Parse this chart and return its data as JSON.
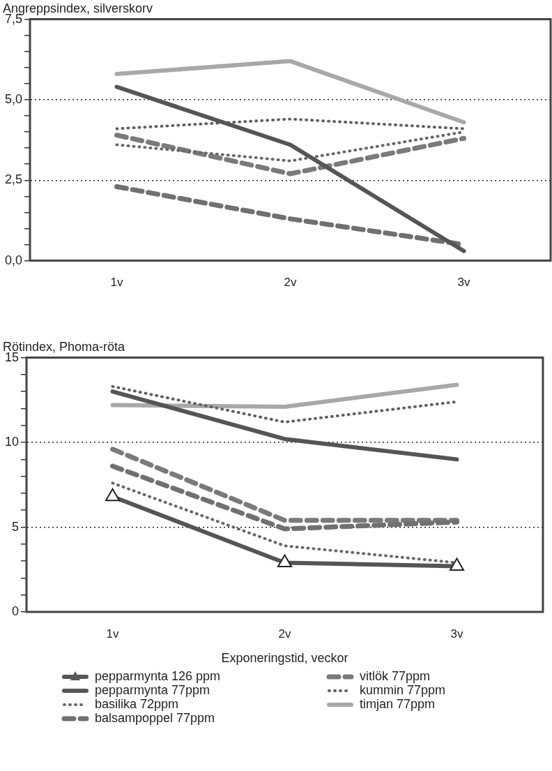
{
  "chart_data": [
    {
      "type": "line",
      "title": "Angreppsindex, silverskorv",
      "categories": [
        "1v",
        "2v",
        "3v"
      ],
      "ylim": [
        0,
        7.5
      ],
      "yticks": [
        {
          "value": 0,
          "label": "0,0"
        },
        {
          "value": 0.5,
          "label": null
        },
        {
          "value": 1,
          "label": null
        },
        {
          "value": 1.5,
          "label": null
        },
        {
          "value": 2,
          "label": null
        },
        {
          "value": 2.5,
          "label": "2,5"
        },
        {
          "value": 3,
          "label": null
        },
        {
          "value": 3.5,
          "label": null
        },
        {
          "value": 4,
          "label": null
        },
        {
          "value": 4.5,
          "label": null
        },
        {
          "value": 5,
          "label": "5,0"
        },
        {
          "value": 5.5,
          "label": null
        },
        {
          "value": 6,
          "label": null
        },
        {
          "value": 6.5,
          "label": null
        },
        {
          "value": 7,
          "label": null
        },
        {
          "value": 7.5,
          "label": "7,5"
        }
      ],
      "grid": "y",
      "marker": "none",
      "series": [
        {
          "color": "#555555",
          "line_style": "solid",
          "values": [
            5.4,
            3.6,
            0.3
          ]
        },
        {
          "color": "#666666",
          "line_style": "dotted",
          "values": [
            3.6,
            3.1,
            4.0
          ]
        },
        {
          "color": "#707070",
          "line_style": "dashed",
          "values": [
            2.3,
            1.3,
            0.5
          ]
        },
        {
          "color": "#7a7a7a",
          "line_style": "dashed",
          "values": [
            3.9,
            2.7,
            3.8
          ]
        },
        {
          "color": "#606060",
          "line_style": "dotted",
          "values": [
            4.1,
            4.4,
            4.1
          ]
        },
        {
          "color": "#a8a8a8",
          "line_style": "solid",
          "values": [
            5.8,
            6.2,
            4.3
          ]
        }
      ]
    },
    {
      "type": "line",
      "title": "Rötindex, Phoma-röta",
      "xlabel": "Exponeringstid, veckor",
      "categories": [
        "1v",
        "2v",
        "3v"
      ],
      "ylim": [
        0,
        15
      ],
      "yticks": [
        0,
        {
          "value": 1,
          "label": null
        },
        {
          "value": 2,
          "label": null
        },
        {
          "value": 3,
          "label": null
        },
        {
          "value": 4,
          "label": null
        },
        5,
        {
          "value": 6,
          "label": null
        },
        {
          "value": 7,
          "label": null
        },
        {
          "value": 8,
          "label": null
        },
        {
          "value": 9,
          "label": null
        },
        10,
        {
          "value": 11,
          "label": null
        },
        {
          "value": 12,
          "label": null
        },
        {
          "value": 13,
          "label": null
        },
        {
          "value": 14,
          "label": null
        },
        15
      ],
      "grid": "y",
      "legend": "bottom",
      "series": [
        {
          "name": "pepparmynta 126 ppm",
          "color": "#555555",
          "line_style": "solid",
          "marker": "triangle",
          "values": [
            6.8,
            2.9,
            2.7
          ]
        },
        {
          "name": "pepparmynta 77ppm",
          "color": "#555555",
          "line_style": "solid",
          "marker": "none",
          "values": [
            13.0,
            10.2,
            9.0
          ]
        },
        {
          "name": "basilika 72ppm",
          "color": "#666666",
          "line_style": "dotted",
          "marker": "none",
          "values": [
            7.6,
            3.9,
            2.9
          ]
        },
        {
          "name": "balsampoppel 77ppm",
          "color": "#707070",
          "line_style": "dashed",
          "marker": "none",
          "values": [
            8.6,
            4.9,
            5.3
          ]
        },
        {
          "name": "vitlök 77ppm",
          "color": "#7a7a7a",
          "line_style": "dashed",
          "marker": "none",
          "values": [
            9.6,
            5.4,
            5.4
          ]
        },
        {
          "name": "kummin 77ppm",
          "color": "#606060",
          "line_style": "dotted",
          "marker": "none",
          "values": [
            13.3,
            11.2,
            12.4
          ]
        },
        {
          "name": "timjan 77ppm",
          "color": "#a8a8a8",
          "line_style": "solid",
          "marker": "none",
          "values": [
            12.2,
            12.1,
            13.4
          ]
        }
      ]
    }
  ]
}
